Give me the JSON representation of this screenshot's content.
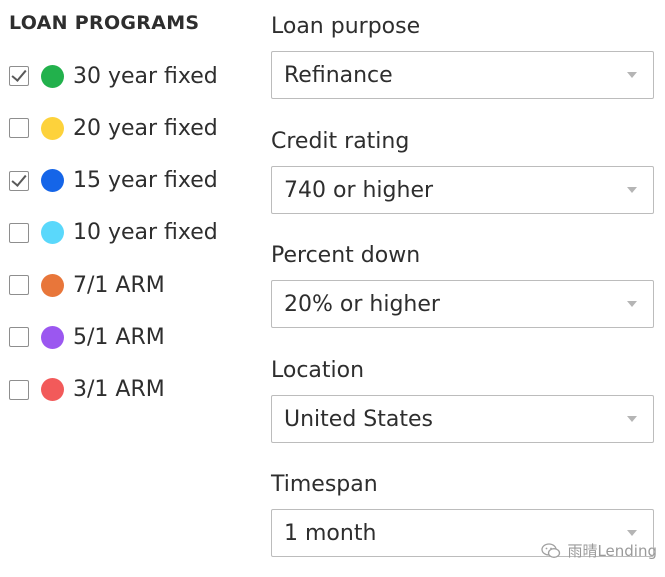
{
  "loan_programs": {
    "heading": "LOAN PROGRAMS",
    "items": [
      {
        "label": "30 year fixed",
        "checked": true,
        "color": "#22b14c"
      },
      {
        "label": "20 year fixed",
        "checked": false,
        "color": "#fdd23b"
      },
      {
        "label": "15 year fixed",
        "checked": true,
        "color": "#1565e8"
      },
      {
        "label": "10 year fixed",
        "checked": false,
        "color": "#5ad8fb"
      },
      {
        "label": "7/1 ARM",
        "checked": false,
        "color": "#e8763a"
      },
      {
        "label": "5/1 ARM",
        "checked": false,
        "color": "#9b57f0"
      },
      {
        "label": "3/1 ARM",
        "checked": false,
        "color": "#f25a5a"
      }
    ]
  },
  "filters": {
    "loan_purpose": {
      "label": "Loan purpose",
      "value": "Refinance"
    },
    "credit_rating": {
      "label": "Credit rating",
      "value": "740 or higher"
    },
    "percent_down": {
      "label": "Percent down",
      "value": "20% or higher"
    },
    "location": {
      "label": "Location",
      "value": "United States"
    },
    "timespan": {
      "label": "Timespan",
      "value": "1 month"
    }
  },
  "watermark": {
    "text": "雨晴Lending",
    "icon": "wechat-icon"
  }
}
